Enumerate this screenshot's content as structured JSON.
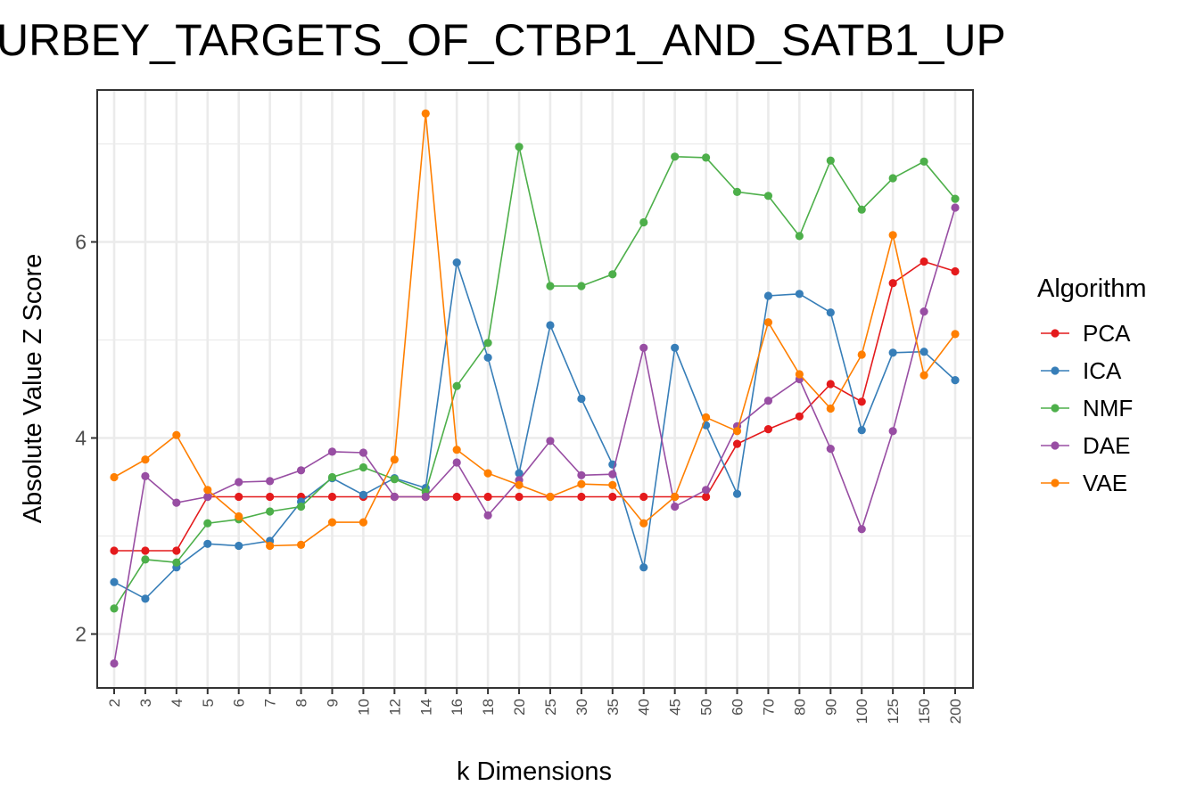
{
  "chart_data": {
    "type": "line",
    "title": "URBEY_TARGETS_OF_CTBP1_AND_SATB1_UP",
    "xlabel": "k Dimensions",
    "ylabel": "Absolute Value Z Score",
    "x": [
      "2",
      "3",
      "4",
      "5",
      "6",
      "7",
      "8",
      "9",
      "10",
      "12",
      "14",
      "16",
      "18",
      "20",
      "25",
      "30",
      "35",
      "40",
      "45",
      "50",
      "60",
      "70",
      "80",
      "90",
      "100",
      "125",
      "150",
      "200"
    ],
    "ylim": [
      1.45,
      7.55
    ],
    "yticks": [
      "2",
      "4",
      "6"
    ],
    "grid": true,
    "legend": {
      "title": "Algorithm",
      "position": "right"
    },
    "series": [
      {
        "name": "PCA",
        "color": "#e41a1c",
        "values": [
          2.85,
          2.85,
          2.85,
          3.4,
          3.4,
          3.4,
          3.4,
          3.4,
          3.4,
          3.4,
          3.4,
          3.4,
          3.4,
          3.4,
          3.4,
          3.4,
          3.4,
          3.4,
          3.4,
          3.4,
          3.94,
          4.09,
          4.22,
          4.55,
          4.37,
          5.58,
          5.8,
          5.7
        ]
      },
      {
        "name": "ICA",
        "color": "#377eb8",
        "values": [
          2.53,
          2.36,
          2.68,
          2.92,
          2.9,
          2.95,
          3.35,
          3.59,
          3.42,
          3.59,
          3.49,
          5.79,
          4.82,
          3.64,
          5.15,
          4.4,
          3.73,
          2.68,
          4.92,
          4.13,
          3.43,
          5.45,
          5.47,
          5.28,
          4.08,
          4.87,
          4.88,
          4.59
        ]
      },
      {
        "name": "NMF",
        "color": "#4daf4a",
        "values": [
          2.26,
          2.76,
          2.73,
          3.13,
          3.17,
          3.25,
          3.3,
          3.6,
          3.7,
          3.58,
          3.45,
          4.53,
          4.97,
          6.97,
          5.55,
          5.55,
          5.67,
          6.2,
          6.87,
          6.86,
          6.51,
          6.47,
          6.06,
          6.83,
          6.33,
          6.65,
          6.82,
          6.44
        ]
      },
      {
        "name": "DAE",
        "color": "#984ea3",
        "values": [
          1.7,
          3.61,
          3.34,
          3.4,
          3.55,
          3.56,
          3.67,
          3.86,
          3.85,
          3.4,
          3.4,
          3.75,
          3.21,
          3.57,
          3.97,
          3.62,
          3.63,
          4.92,
          3.3,
          3.47,
          4.12,
          4.38,
          4.6,
          3.89,
          3.07,
          4.07,
          5.29,
          6.35
        ]
      },
      {
        "name": "VAE",
        "color": "#ff7f00",
        "values": [
          3.6,
          3.78,
          4.03,
          3.47,
          3.2,
          2.9,
          2.91,
          3.14,
          3.14,
          3.78,
          7.31,
          3.88,
          3.64,
          3.52,
          3.4,
          3.53,
          3.52,
          3.13,
          3.4,
          4.21,
          4.07,
          5.18,
          4.65,
          4.3,
          4.85,
          6.07,
          4.64,
          5.06
        ]
      }
    ]
  }
}
